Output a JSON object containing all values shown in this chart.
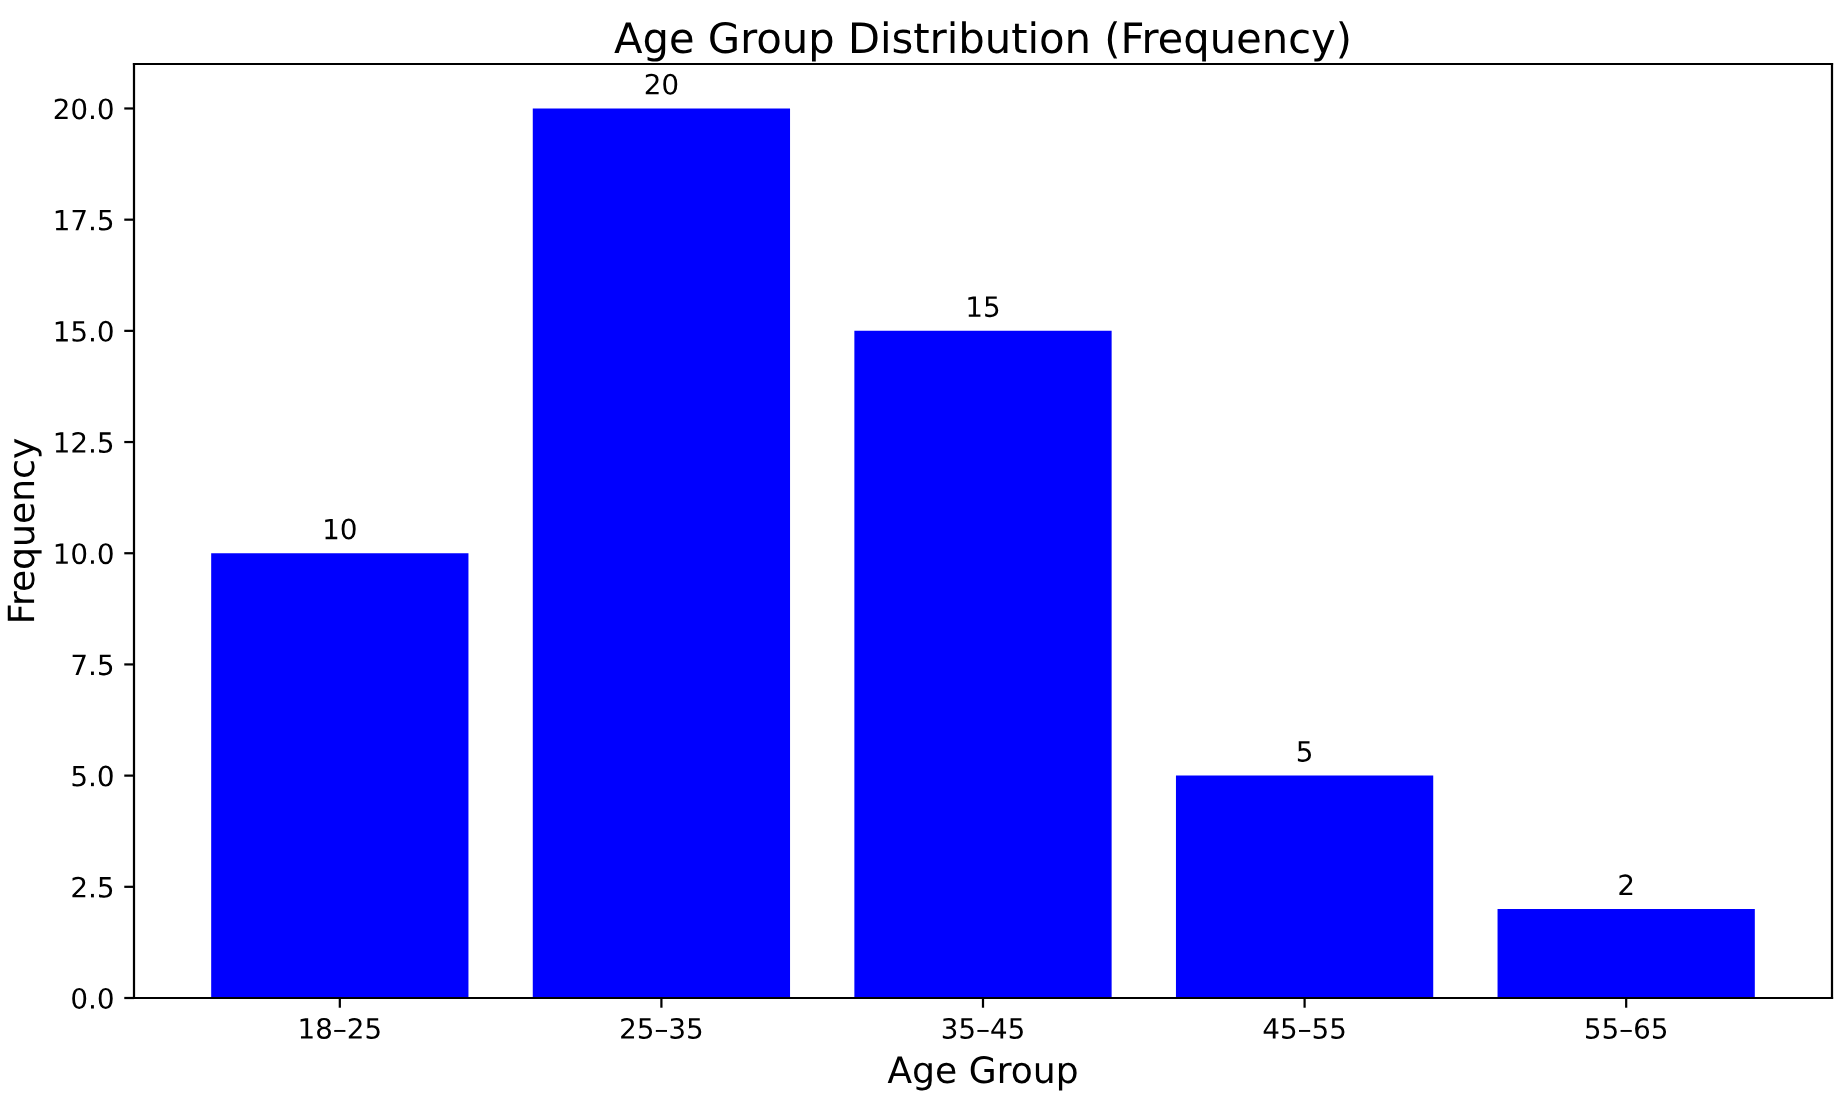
{
  "chart_data": {
    "type": "bar",
    "title": "Age Group Distribution (Frequency)",
    "xlabel": "Age Group",
    "ylabel": "Frequency",
    "categories": [
      "18–25",
      "25–35",
      "35–45",
      "45–55",
      "55–65"
    ],
    "values": [
      10,
      20,
      15,
      5,
      2
    ],
    "color": "#0000ff",
    "data_labels": true,
    "ylim": [
      0,
      21
    ],
    "yticks": [
      {
        "value": 0,
        "label": "0.0"
      },
      {
        "value": 2.5,
        "label": "2.5"
      },
      {
        "value": 5,
        "label": "5.0"
      },
      {
        "value": 7.5,
        "label": "7.5"
      },
      {
        "value": 10,
        "label": "10.0"
      },
      {
        "value": 12.5,
        "label": "12.5"
      },
      {
        "value": 15,
        "label": "15.0"
      },
      {
        "value": 17.5,
        "label": "17.5"
      },
      {
        "value": 20,
        "label": "20.0"
      }
    ],
    "grid": false
  }
}
